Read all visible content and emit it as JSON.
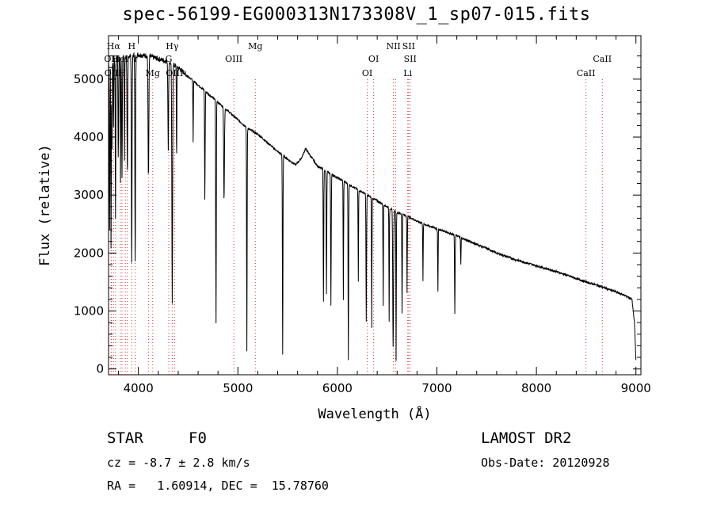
{
  "chart_data": {
    "type": "line",
    "title": "spec-56199-EG000313N173308V_1_sp07-015.fits",
    "xlabel": "Wavelength (Å)",
    "ylabel": "Flux (relative)",
    "xlim": [
      3700,
      9050
    ],
    "ylim": [
      -100,
      5750
    ],
    "x_ticks": [
      4000,
      5000,
      6000,
      7000,
      8000,
      9000
    ],
    "y_ticks": [
      0,
      1000,
      2000,
      3000,
      4000,
      5000
    ],
    "grid": false,
    "continuum": [
      [
        3700,
        5300
      ],
      [
        3800,
        5350
      ],
      [
        3900,
        5400
      ],
      [
        4000,
        5420
      ],
      [
        4100,
        5400
      ],
      [
        4200,
        5350
      ],
      [
        4300,
        5300
      ],
      [
        4400,
        5200
      ],
      [
        4500,
        5050
      ],
      [
        4600,
        4900
      ],
      [
        4700,
        4750
      ],
      [
        4800,
        4600
      ],
      [
        4900,
        4450
      ],
      [
        5000,
        4300
      ],
      [
        5100,
        4150
      ],
      [
        5200,
        4050
      ],
      [
        5300,
        3900
      ],
      [
        5400,
        3750
      ],
      [
        5500,
        3620
      ],
      [
        5580,
        3520
      ],
      [
        5640,
        3640
      ],
      [
        5680,
        3800
      ],
      [
        5720,
        3700
      ],
      [
        5800,
        3500
      ],
      [
        5900,
        3400
      ],
      [
        6000,
        3300
      ],
      [
        6100,
        3200
      ],
      [
        6200,
        3100
      ],
      [
        6300,
        3000
      ],
      [
        6400,
        2900
      ],
      [
        6500,
        2800
      ],
      [
        6600,
        2700
      ],
      [
        6700,
        2640
      ],
      [
        6800,
        2550
      ],
      [
        6900,
        2480
      ],
      [
        7000,
        2420
      ],
      [
        7100,
        2360
      ],
      [
        7200,
        2300
      ],
      [
        7300,
        2220
      ],
      [
        7400,
        2150
      ],
      [
        7500,
        2080
      ],
      [
        7600,
        2000
      ],
      [
        7700,
        1940
      ],
      [
        7800,
        1880
      ],
      [
        7900,
        1830
      ],
      [
        8000,
        1780
      ],
      [
        8100,
        1730
      ],
      [
        8200,
        1680
      ],
      [
        8300,
        1620
      ],
      [
        8400,
        1560
      ],
      [
        8500,
        1500
      ],
      [
        8600,
        1450
      ],
      [
        8700,
        1390
      ],
      [
        8800,
        1330
      ],
      [
        8900,
        1260
      ],
      [
        8960,
        1200
      ],
      [
        8985,
        800
      ],
      [
        9000,
        150
      ]
    ],
    "absorption_lines": [
      [
        3710,
        2400,
        5
      ],
      [
        3725,
        2100,
        5
      ],
      [
        3735,
        3800,
        4
      ],
      [
        3750,
        4200,
        4
      ],
      [
        3770,
        2600,
        5
      ],
      [
        3798,
        3600,
        5
      ],
      [
        3820,
        3200,
        4
      ],
      [
        3835,
        3300,
        5
      ],
      [
        3860,
        3600,
        4
      ],
      [
        3889,
        3300,
        6
      ],
      [
        3933,
        1800,
        6
      ],
      [
        3968,
        1800,
        6
      ],
      [
        4101,
        3300,
        7
      ],
      [
        4300,
        3800,
        6
      ],
      [
        4340,
        1100,
        7
      ],
      [
        4384,
        3600,
        4
      ],
      [
        4550,
        3900,
        4
      ],
      [
        4668,
        2900,
        5
      ],
      [
        4780,
        800,
        5
      ],
      [
        4861,
        2900,
        7
      ],
      [
        5090,
        300,
        5
      ],
      [
        5450,
        250,
        5
      ],
      [
        5860,
        1150,
        5
      ],
      [
        5890,
        1300,
        5
      ],
      [
        5935,
        1100,
        5
      ],
      [
        6060,
        1200,
        4
      ],
      [
        6110,
        150,
        5
      ],
      [
        6210,
        1500,
        4
      ],
      [
        6290,
        800,
        5
      ],
      [
        6345,
        700,
        4
      ],
      [
        6460,
        1100,
        4
      ],
      [
        6520,
        800,
        4
      ],
      [
        6560,
        400,
        7
      ],
      [
        6590,
        150,
        4
      ],
      [
        6650,
        950,
        4
      ],
      [
        6700,
        1300,
        4
      ],
      [
        6860,
        1500,
        4
      ],
      [
        7010,
        1350,
        4
      ],
      [
        7180,
        950,
        5
      ],
      [
        7240,
        1800,
        4
      ]
    ],
    "line_markers": [
      {
        "wavelength": 3726,
        "label": "OII",
        "row": 1
      },
      {
        "wavelength": 3729,
        "label": "OII",
        "row": 2
      },
      {
        "wavelength": 3750,
        "label": "Hα",
        "row": 0
      },
      {
        "wavelength": 3770,
        "label": "H",
        "row": 1
      },
      {
        "wavelength": 3819,
        "label": "HeI",
        "row": 1
      },
      {
        "wavelength": 3835,
        "label": "H",
        "row": 2
      },
      {
        "wavelength": 3869,
        "label": "",
        "row": 2
      },
      {
        "wavelength": 3889,
        "label": "",
        "row": 2
      },
      {
        "wavelength": 3933,
        "label": "H",
        "row": 0
      },
      {
        "wavelength": 3968,
        "label": "I",
        "row": 1
      },
      {
        "wavelength": 4101,
        "label": "",
        "row": 2
      },
      {
        "wavelength": 4144,
        "label": "Mg",
        "row": 2
      },
      {
        "wavelength": 4305,
        "label": "G",
        "row": 1
      },
      {
        "wavelength": 4340,
        "label": "Hγ",
        "row": 0
      },
      {
        "wavelength": 4363,
        "label": "OIII",
        "row": 2
      },
      {
        "wavelength": 4959,
        "label": "OIII",
        "row": 1
      },
      {
        "wavelength": 5175,
        "label": "Mg",
        "row": 0
      },
      {
        "wavelength": 6300,
        "label": "OI",
        "row": 2
      },
      {
        "wavelength": 6364,
        "label": "OI",
        "row": 1
      },
      {
        "wavelength": 6563,
        "label": "NII",
        "row": 0
      },
      {
        "wavelength": 6584,
        "label": "",
        "row": 0
      },
      {
        "wavelength": 6707,
        "label": "Li",
        "row": 2
      },
      {
        "wavelength": 6716,
        "label": "SII",
        "row": 0
      },
      {
        "wavelength": 6731,
        "label": "SII",
        "row": 1
      },
      {
        "wavelength": 8498,
        "label": "CaII",
        "row": 2
      },
      {
        "wavelength": 8662,
        "label": "CaII",
        "row": 1
      }
    ],
    "line_color": "#000000",
    "marker_color": "#d93030"
  },
  "footer": {
    "object_class": "STAR",
    "subclass": "F0",
    "redshift": "cz = -8.7 ± 2.8 km/s",
    "coords": "RA =   1.60914, DEC =  15.78760",
    "survey": "LAMOST DR2",
    "obs_date": "Obs-Date: 20120928"
  }
}
